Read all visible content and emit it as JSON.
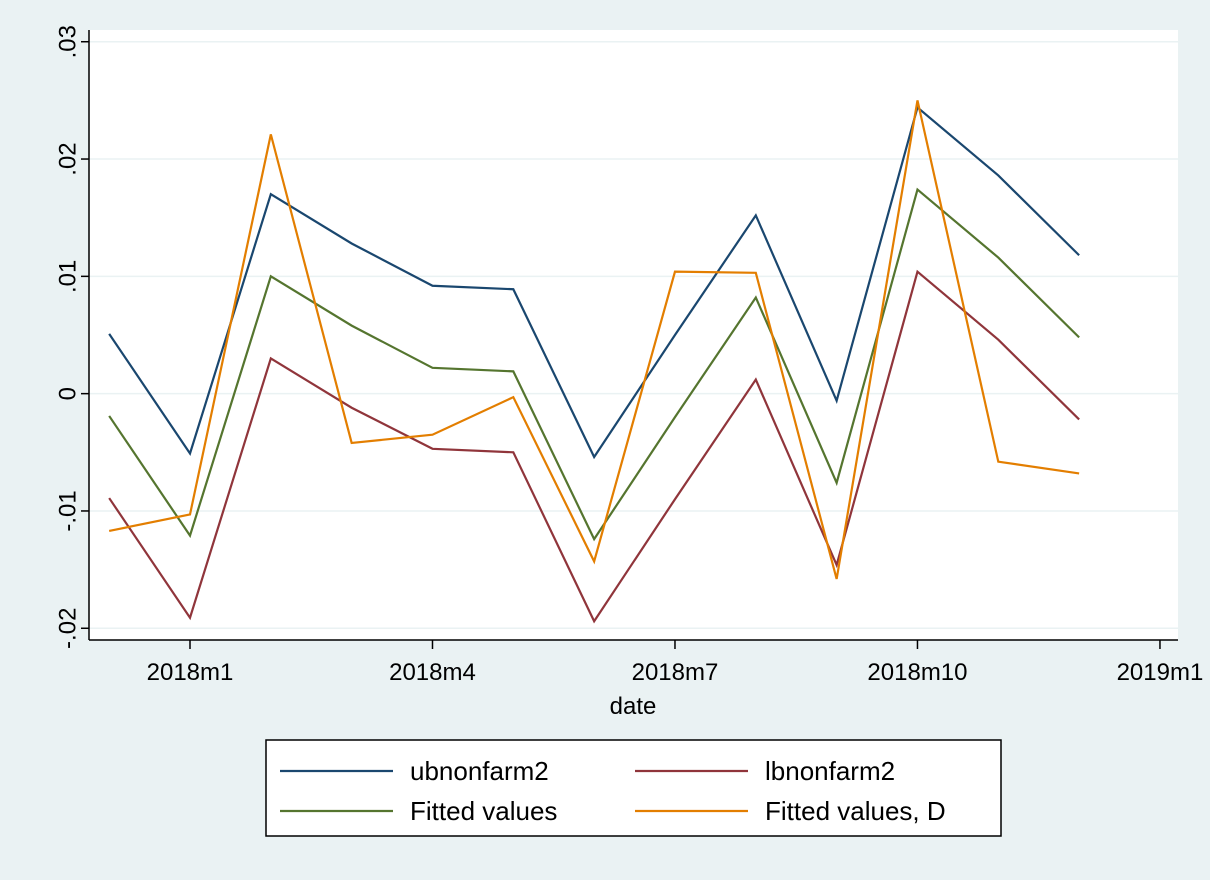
{
  "chart_data": {
    "type": "line",
    "title": "",
    "xlabel": "date",
    "ylabel": "",
    "xlim": [
      "2017m11",
      "2019m1"
    ],
    "ylim": [
      -0.021,
      0.031
    ],
    "x_ticks": [
      "2018m1",
      "2018m4",
      "2018m7",
      "2018m10",
      "2019m1"
    ],
    "y_ticks": [
      "-.02",
      "-.01",
      "0",
      ".01",
      ".02",
      ".03"
    ],
    "y_tick_values": [
      -0.02,
      -0.01,
      0,
      0.01,
      0.02,
      0.03
    ],
    "grid": true,
    "legend_position": "bottom",
    "x": [
      "2017m12",
      "2018m1",
      "2018m2",
      "2018m3",
      "2018m4",
      "2018m5",
      "2018m6",
      "2018m7",
      "2018m8",
      "2018m9",
      "2018m10",
      "2018m11",
      "2018m12"
    ],
    "series": [
      {
        "name": "ubnonfarm2",
        "color": "#1a476f",
        "values": [
          0.0051,
          -0.0051,
          0.017,
          0.0128,
          0.0092,
          0.0089,
          -0.0054,
          0.005,
          0.0152,
          -0.0006,
          0.0244,
          0.0186,
          0.0118
        ]
      },
      {
        "name": "lbnonfarm2",
        "color": "#90353b",
        "values": [
          -0.0089,
          -0.0191,
          0.003,
          -0.0012,
          -0.0047,
          -0.005,
          -0.0194,
          -0.009,
          0.0012,
          -0.0146,
          0.0104,
          0.0046,
          -0.0022
        ]
      },
      {
        "name": "Fitted values",
        "color": "#55752f",
        "values": [
          -0.0019,
          -0.0121,
          0.01,
          0.0058,
          0.0022,
          0.0019,
          -0.0124,
          -0.002,
          0.0082,
          -0.0076,
          0.0174,
          0.0116,
          0.0048
        ]
      },
      {
        "name": "Fitted values, D",
        "color": "#e37e00",
        "values": [
          -0.0117,
          -0.0103,
          0.0221,
          -0.0042,
          -0.0035,
          -0.0003,
          -0.0143,
          0.0104,
          0.0103,
          -0.0158,
          0.025,
          -0.0058,
          -0.0068
        ]
      }
    ]
  }
}
